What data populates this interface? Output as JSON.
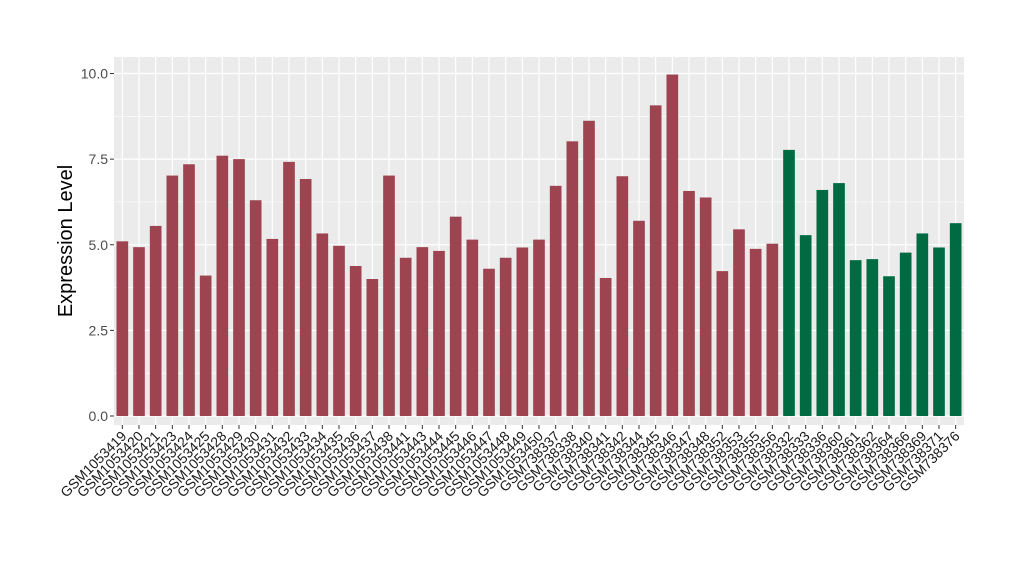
{
  "chart_data": {
    "type": "bar",
    "title": "",
    "xlabel": "",
    "ylabel": "Expression Level",
    "ylim": [
      0,
      10.2
    ],
    "yticks": [
      0.0,
      2.5,
      5.0,
      7.5,
      10.0
    ],
    "ytick_labels": [
      "0.0",
      "2.5",
      "5.0",
      "7.5",
      "10.0"
    ],
    "grid": true,
    "legend": "none",
    "colors": {
      "group1": "#9e4350",
      "group2": "#006a43",
      "panel_bg": "#ebebeb",
      "grid": "#ffffff"
    },
    "categories": [
      "GSM1053419",
      "GSM1053420",
      "GSM1053421",
      "GSM1053423",
      "GSM1053424",
      "GSM1053425",
      "GSM1053428",
      "GSM1053429",
      "GSM1053430",
      "GSM1053431",
      "GSM1053432",
      "GSM1053433",
      "GSM1053434",
      "GSM1053435",
      "GSM1053436",
      "GSM1053437",
      "GSM1053438",
      "GSM1053441",
      "GSM1053443",
      "GSM1053444",
      "GSM1053445",
      "GSM1053446",
      "GSM1053447",
      "GSM1053448",
      "GSM1053449",
      "GSM1053450",
      "GSM738337",
      "GSM738338",
      "GSM738340",
      "GSM738341",
      "GSM738342",
      "GSM738344",
      "GSM738345",
      "GSM738346",
      "GSM738347",
      "GSM738348",
      "GSM738352",
      "GSM738353",
      "GSM738355",
      "GSM738356",
      "GSM738332",
      "GSM738333",
      "GSM738336",
      "GSM738360",
      "GSM738361",
      "GSM738362",
      "GSM738364",
      "GSM738366",
      "GSM738369",
      "GSM738371",
      "GSM738376"
    ],
    "values": [
      5.1,
      4.93,
      5.55,
      7.02,
      7.35,
      4.1,
      7.6,
      7.5,
      6.3,
      5.17,
      7.42,
      6.92,
      5.33,
      4.97,
      4.38,
      4.0,
      7.02,
      4.62,
      4.93,
      4.82,
      5.82,
      5.15,
      4.3,
      4.62,
      4.92,
      5.15,
      6.72,
      8.02,
      8.62,
      4.03,
      7.0,
      5.7,
      9.07,
      9.97,
      6.57,
      6.38,
      4.23,
      5.45,
      4.88,
      5.03,
      7.77,
      5.28,
      6.6,
      6.8,
      4.55,
      4.58,
      4.08,
      4.77,
      5.33,
      4.92,
      5.63
    ],
    "groups": [
      1,
      1,
      1,
      1,
      1,
      1,
      1,
      1,
      1,
      1,
      1,
      1,
      1,
      1,
      1,
      1,
      1,
      1,
      1,
      1,
      1,
      1,
      1,
      1,
      1,
      1,
      1,
      1,
      1,
      1,
      1,
      1,
      1,
      1,
      1,
      1,
      1,
      1,
      1,
      1,
      2,
      2,
      2,
      2,
      2,
      2,
      2,
      2,
      2,
      2,
      2
    ]
  }
}
